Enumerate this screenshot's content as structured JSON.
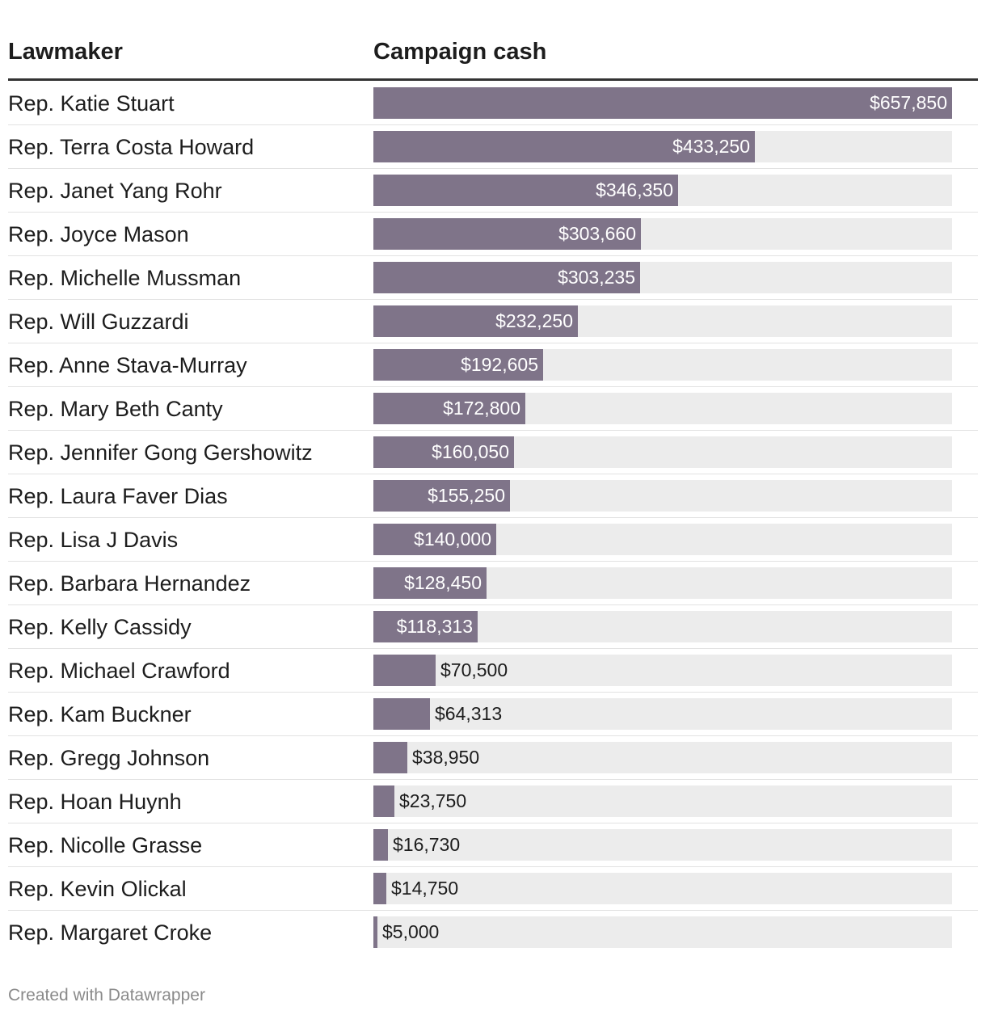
{
  "chart_data": {
    "type": "bar",
    "orientation": "horizontal",
    "columns": [
      "Lawmaker",
      "Campaign cash"
    ],
    "categories": [
      "Rep. Katie Stuart",
      "Rep. Terra Costa Howard",
      "Rep. Janet Yang Rohr",
      "Rep. Joyce Mason",
      "Rep. Michelle Mussman",
      "Rep. Will Guzzardi",
      "Rep. Anne Stava-Murray",
      "Rep. Mary Beth Canty",
      "Rep. Jennifer Gong Gershowitz",
      "Rep. Laura Faver Dias",
      "Rep. Lisa J Davis",
      "Rep. Barbara Hernandez",
      "Rep. Kelly Cassidy",
      "Rep. Michael Crawford",
      "Rep. Kam Buckner",
      "Rep. Gregg Johnson",
      "Rep. Hoan Huynh",
      "Rep. Nicolle Grasse",
      "Rep. Kevin Olickal",
      "Rep. Margaret Croke"
    ],
    "values": [
      657850,
      433250,
      346350,
      303660,
      303235,
      232250,
      192605,
      172800,
      160050,
      155250,
      140000,
      128450,
      118313,
      70500,
      64313,
      38950,
      23750,
      16730,
      14750,
      5000
    ],
    "labels": [
      "$657,850",
      "$433,250",
      "$346,350",
      "$303,660",
      "$303,235",
      "$232,250",
      "$192,605",
      "$172,800",
      "$160,050",
      "$155,250",
      "$140,000",
      "$128,450",
      "$118,313",
      "$70,500",
      "$64,313",
      "$38,950",
      "$23,750",
      "$16,730",
      "$14,750",
      "$5,000"
    ],
    "xlim": [
      0,
      657850
    ],
    "bar_color": "#7f7489",
    "track_color": "#ececec"
  },
  "footer": "Created with Datawrapper"
}
